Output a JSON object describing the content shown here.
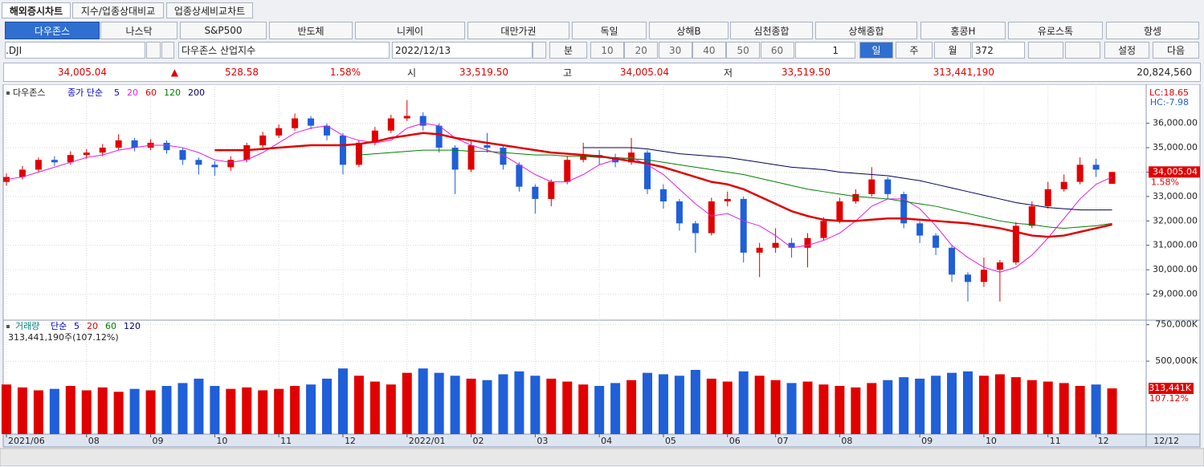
{
  "ui": {
    "tabs": [
      "해외증시차트",
      "지수/업종상대비교",
      "업종상세비교차트"
    ],
    "markets": [
      "다우존스",
      "나스닥",
      "S&P500",
      "반도체",
      "니케이",
      "대만가권",
      "독일",
      "상해B",
      "심천종합",
      "상해종합",
      "홍콩H",
      "유로스톡",
      "항셍"
    ],
    "symbol": ".DJI",
    "symbol_name": "다우존스 산업지수",
    "date": "2022/12/13",
    "minute_label": "분",
    "minute_options": [
      "10",
      "20",
      "30",
      "40",
      "50",
      "60"
    ],
    "tick_count": "1",
    "periods": [
      "일",
      "주",
      "월"
    ],
    "bar_count": "372",
    "settings": "설정",
    "next": "다음",
    "quote": {
      "last": "34,005.04",
      "arrow": "▲",
      "change": "528.58",
      "change_pct": "1.58%",
      "open_label": "시",
      "open": "33,519.50",
      "high_label": "고",
      "high": "34,005.04",
      "low_label": "저",
      "low": "33,519.50",
      "volume": "313,441,190",
      "amount": "20,824,560"
    }
  },
  "chart_data": {
    "type": "candlestick",
    "title": "다우존스",
    "ma_label": "종가 단순",
    "up_color": "#e00000",
    "down_color": "#1f5fd8",
    "categories": [
      "2021/06",
      null,
      null,
      null,
      null,
      "08",
      null,
      null,
      null,
      "09",
      null,
      null,
      null,
      "10",
      null,
      null,
      null,
      "11",
      null,
      null,
      null,
      "12",
      null,
      null,
      null,
      "2022/01",
      null,
      null,
      null,
      "02",
      null,
      null,
      null,
      "03",
      null,
      null,
      null,
      "04",
      null,
      null,
      null,
      "05",
      null,
      null,
      null,
      "06",
      null,
      null,
      "07",
      null,
      null,
      null,
      "08",
      null,
      null,
      null,
      null,
      "09",
      null,
      null,
      null,
      "10",
      null,
      null,
      null,
      "11",
      null,
      null,
      "12",
      null
    ],
    "open": [
      33600,
      33800,
      34100,
      34500,
      34400,
      34700,
      34800,
      35000,
      35300,
      35000,
      35200,
      34900,
      34500,
      34300,
      34200,
      34500,
      35100,
      35500,
      35800,
      36200,
      35900,
      35500,
      34300,
      35200,
      35700,
      36200,
      36300,
      35900,
      35000,
      34100,
      35100,
      35000,
      34300,
      33400,
      32900,
      33600,
      34500,
      34700,
      34600,
      34400,
      34800,
      33300,
      32800,
      31900,
      31500,
      32800,
      32900,
      30700,
      30900,
      31100,
      30900,
      31300,
      32000,
      32800,
      33100,
      33700,
      33100,
      31900,
      31400,
      30900,
      29800,
      29500,
      30000,
      30300,
      31800,
      32600,
      33300,
      33600,
      34300,
      33519.5
    ],
    "high": [
      33950,
      34250,
      34600,
      34650,
      34850,
      34950,
      35150,
      35550,
      35400,
      35350,
      35300,
      35000,
      34600,
      34450,
      34650,
      35200,
      35650,
      35950,
      36400,
      36300,
      36000,
      35600,
      35300,
      35850,
      36350,
      36950,
      36450,
      36000,
      35100,
      35300,
      35600,
      35100,
      34400,
      33500,
      33700,
      34650,
      35200,
      34900,
      34750,
      35400,
      34900,
      33500,
      32900,
      32000,
      32950,
      33200,
      33000,
      31100,
      31700,
      31300,
      31500,
      32150,
      32950,
      33300,
      34200,
      33800,
      33200,
      32000,
      31500,
      31000,
      29900,
      30500,
      30400,
      31950,
      32800,
      33600,
      33900,
      34600,
      34550,
      34005.04
    ],
    "low": [
      33450,
      33700,
      34000,
      34250,
      34300,
      34550,
      34650,
      34900,
      34850,
      34900,
      34750,
      34300,
      33900,
      33850,
      34050,
      34400,
      35000,
      35400,
      35700,
      35750,
      35300,
      33900,
      34200,
      35100,
      35600,
      36100,
      35700,
      34800,
      33100,
      34000,
      34800,
      34100,
      33200,
      32300,
      32600,
      33500,
      34400,
      34300,
      34200,
      34300,
      33100,
      32500,
      31600,
      30700,
      31400,
      32600,
      30300,
      29700,
      30700,
      30500,
      30100,
      31200,
      31900,
      32700,
      33000,
      32900,
      31700,
      31100,
      30600,
      29500,
      28700,
      29300,
      28700,
      30200,
      31700,
      32500,
      33200,
      33500,
      33800,
      33519.5
    ],
    "close": [
      33800,
      34100,
      34500,
      34400,
      34700,
      34800,
      35000,
      35300,
      35000,
      35200,
      34900,
      34500,
      34300,
      34200,
      34500,
      35100,
      35500,
      35800,
      36200,
      35900,
      35500,
      34300,
      35200,
      35700,
      36200,
      36300,
      35900,
      35000,
      34100,
      35100,
      35000,
      34300,
      33400,
      32900,
      33600,
      34500,
      34700,
      34600,
      34400,
      34800,
      33300,
      32800,
      31900,
      31500,
      32800,
      32900,
      30700,
      30900,
      31100,
      30900,
      31300,
      32000,
      32800,
      33100,
      33700,
      33100,
      31900,
      31400,
      30900,
      29800,
      29500,
      30000,
      30300,
      31800,
      32600,
      33300,
      33600,
      34300,
      34100,
      34005.04
    ],
    "ma": [
      {
        "name": "5",
        "color": "#0000c0"
      },
      {
        "name": "20",
        "color": "#e020e0",
        "values": [
          33700,
          33800,
          34000,
          34200,
          34400,
          34600,
          34700,
          34900,
          35000,
          35100,
          35100,
          35000,
          34800,
          34500,
          34400,
          34500,
          34800,
          35200,
          35600,
          35800,
          35900,
          35500,
          35300,
          35200,
          35300,
          35800,
          36000,
          35900,
          35400,
          35100,
          34900,
          34700,
          34300,
          33900,
          33600,
          33600,
          33900,
          34300,
          34500,
          34600,
          34300,
          33900,
          33300,
          32700,
          32200,
          32300,
          32000,
          31800,
          31400,
          30900,
          31000,
          31200,
          31500,
          32000,
          32600,
          32900,
          32900,
          32500,
          31800,
          31000,
          30500,
          30100,
          29900,
          30100,
          30600,
          31300,
          32100,
          32900,
          33500,
          33800
        ]
      },
      {
        "name": "60",
        "color": "#e00000",
        "values": [
          null,
          null,
          null,
          null,
          null,
          null,
          null,
          null,
          null,
          null,
          null,
          null,
          null,
          34900,
          34900,
          34900,
          34950,
          35000,
          35050,
          35100,
          35100,
          35100,
          35150,
          35250,
          35400,
          35500,
          35600,
          35550,
          35400,
          35300,
          35200,
          35100,
          35000,
          34900,
          34800,
          34750,
          34700,
          34650,
          34550,
          34450,
          34350,
          34200,
          34000,
          33800,
          33600,
          33500,
          33300,
          33000,
          32700,
          32400,
          32200,
          32050,
          32000,
          32000,
          32050,
          32100,
          32100,
          32050,
          32000,
          31950,
          31900,
          31800,
          31700,
          31550,
          31400,
          31350,
          31400,
          31550,
          31700,
          31850
        ]
      },
      {
        "name": "120",
        "color": "#008000",
        "values": [
          null,
          null,
          null,
          null,
          null,
          null,
          null,
          null,
          null,
          null,
          null,
          null,
          null,
          null,
          null,
          null,
          null,
          null,
          null,
          null,
          null,
          null,
          34700,
          34750,
          34800,
          34850,
          34900,
          34900,
          34900,
          34850,
          34850,
          34800,
          34750,
          34700,
          34700,
          34650,
          34650,
          34600,
          34600,
          34550,
          34500,
          34400,
          34300,
          34200,
          34100,
          34000,
          33900,
          33750,
          33600,
          33450,
          33300,
          33200,
          33100,
          33000,
          32950,
          32900,
          32800,
          32700,
          32600,
          32450,
          32300,
          32150,
          32000,
          31900,
          31850,
          31750,
          31700,
          31750,
          31800,
          31900
        ]
      },
      {
        "name": "200",
        "color": "#000060",
        "values": [
          null,
          null,
          null,
          null,
          null,
          null,
          null,
          null,
          null,
          null,
          null,
          null,
          null,
          null,
          null,
          null,
          null,
          null,
          null,
          null,
          null,
          null,
          null,
          null,
          null,
          null,
          null,
          null,
          null,
          null,
          null,
          null,
          null,
          null,
          null,
          null,
          35000,
          35000,
          35000,
          35000,
          34950,
          34850,
          34750,
          34700,
          34650,
          34600,
          34500,
          34400,
          34300,
          34200,
          34150,
          34100,
          34000,
          33950,
          33900,
          33850,
          33750,
          33650,
          33500,
          33350,
          33200,
          33050,
          32900,
          32750,
          32650,
          32550,
          32500,
          32450,
          32450,
          32450
        ]
      }
    ],
    "ylim": [
      28000,
      37500
    ],
    "yticks": [
      {
        "value": 29000,
        "label": "29,000.00"
      },
      {
        "value": 30000,
        "label": "30,000.00"
      },
      {
        "value": 31000,
        "label": "31,000.00"
      },
      {
        "value": 32000,
        "label": "32,000.00"
      },
      {
        "value": 33000,
        "label": "33,000.00"
      },
      {
        "value": 34000,
        "label": "34,000.00"
      },
      {
        "value": 35000,
        "label": "35,000.00"
      },
      {
        "value": 36000,
        "label": "36,000.00"
      }
    ],
    "lc_label": "LC:18.65",
    "hc_label": "HC:-7.98",
    "last_tag": "34,005.04",
    "last_pct": "1.58%",
    "volume_title": "거래량",
    "volume_ma_label": "단순",
    "volume_ma": [
      {
        "name": "5",
        "color": "#0000c0"
      },
      {
        "name": "20",
        "color": "#e00000"
      },
      {
        "name": "60",
        "color": "#008000"
      },
      {
        "name": "120",
        "color": "#000060"
      }
    ],
    "volume_summary": "313,441,190주(107.12%)",
    "volume": [
      340000,
      320000,
      300000,
      310000,
      330000,
      300000,
      320000,
      290000,
      310000,
      300000,
      330000,
      350000,
      380000,
      330000,
      310000,
      320000,
      300000,
      310000,
      330000,
      340000,
      380000,
      450000,
      400000,
      360000,
      340000,
      420000,
      450000,
      420000,
      400000,
      380000,
      370000,
      410000,
      430000,
      400000,
      380000,
      360000,
      340000,
      330000,
      350000,
      370000,
      420000,
      410000,
      400000,
      440000,
      380000,
      360000,
      430000,
      400000,
      370000,
      350000,
      360000,
      340000,
      330000,
      320000,
      350000,
      370000,
      390000,
      380000,
      400000,
      420000,
      430000,
      400000,
      410000,
      390000,
      370000,
      360000,
      350000,
      330000,
      340000,
      313441
    ],
    "vlim": [
      0,
      770000
    ],
    "vticks": [
      {
        "value": 500000,
        "label": "500,000K"
      },
      {
        "value": 750000,
        "label": "750,000K"
      }
    ],
    "volume_tag": "313,441K",
    "volume_ratio": "107.12%",
    "cursor_date": "12/12"
  }
}
